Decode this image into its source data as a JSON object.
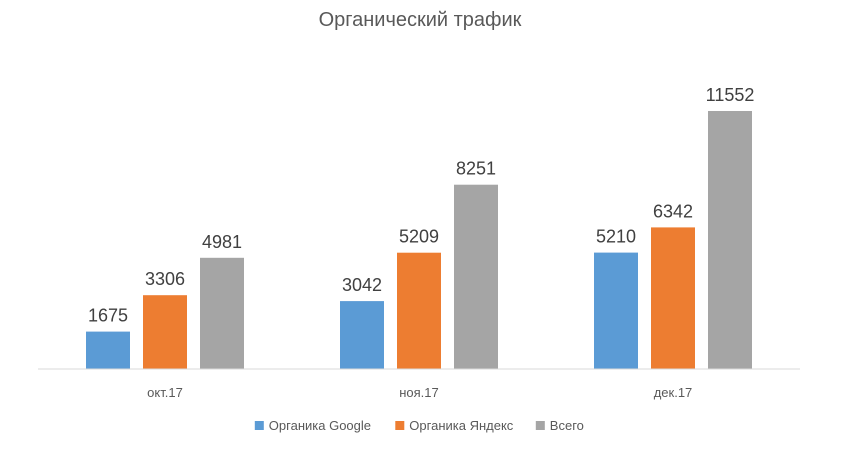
{
  "chart_data": {
    "type": "bar",
    "title": "Органический трафик",
    "categories": [
      "окт.17",
      "ноя.17",
      "дек.17"
    ],
    "series": [
      {
        "name": "Органика Google",
        "color": "#5b9bd5",
        "values": [
          1675,
          3042,
          5210
        ]
      },
      {
        "name": "Органика Яндекс",
        "color": "#ed7d31",
        "values": [
          3306,
          5209,
          6342
        ]
      },
      {
        "name": "Всего",
        "color": "#a5a5a5",
        "values": [
          4981,
          8251,
          11552
        ]
      }
    ],
    "ylim": [
      0,
      12000
    ],
    "grid": false,
    "legend_position": "bottom",
    "data_labels": true
  }
}
